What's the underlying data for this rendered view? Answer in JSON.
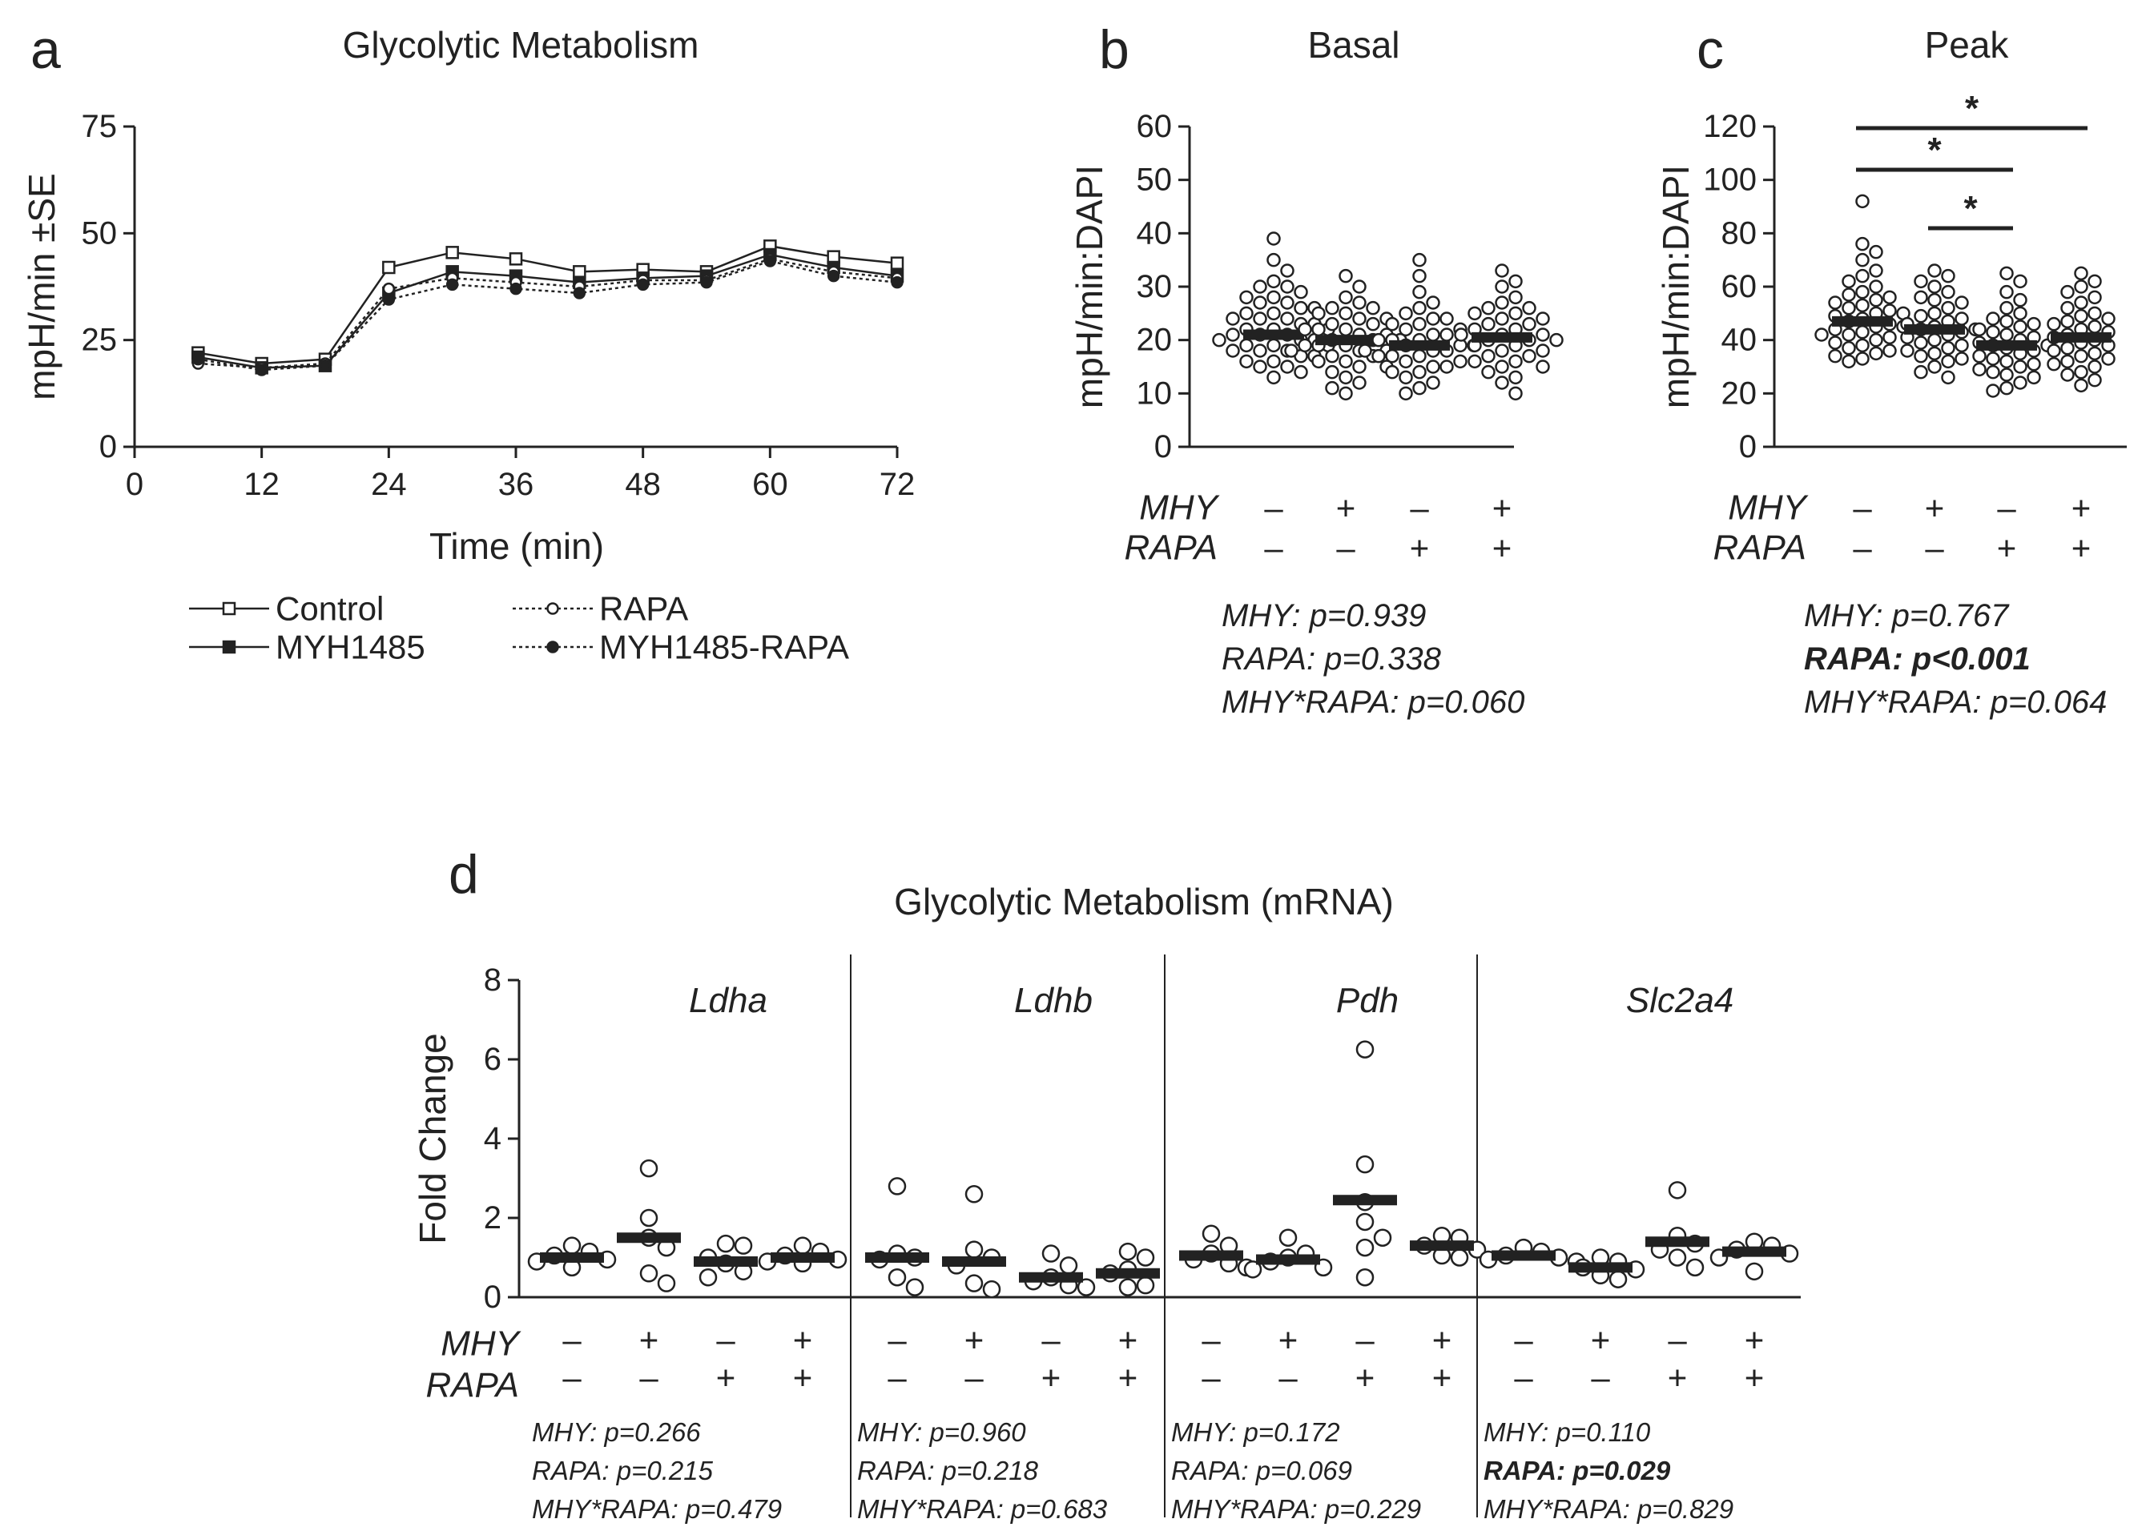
{
  "chart_data": [
    {
      "panel": "a",
      "type": "line",
      "title": "Glycolytic Metabolism",
      "xlabel": "Time (min)",
      "ylabel": "mpH/min ±SE",
      "xlim": [
        0,
        72
      ],
      "ylim": [
        0,
        75
      ],
      "xticks": [
        0,
        12,
        24,
        36,
        48,
        60,
        72
      ],
      "yticks": [
        0,
        25,
        50,
        75
      ],
      "x": [
        6,
        12,
        18,
        24,
        30,
        36,
        42,
        48,
        54,
        60,
        66,
        72
      ],
      "series": [
        {
          "name": "Control",
          "style": "solid",
          "marker": "open-square",
          "values": [
            22,
            19.5,
            20.5,
            42,
            45.5,
            44,
            41,
            41.5,
            41,
            47,
            44.5,
            43
          ]
        },
        {
          "name": "MYH1485",
          "style": "solid",
          "marker": "filled-square",
          "values": [
            21,
            18.5,
            19,
            36,
            41,
            40,
            38.5,
            39.5,
            40,
            45,
            42,
            40
          ]
        },
        {
          "name": "RAPA",
          "style": "dotted",
          "marker": "open-circle",
          "values": [
            19.5,
            18.5,
            19.5,
            37,
            39.5,
            38.5,
            37.5,
            39,
            39,
            44,
            41,
            39.5
          ]
        },
        {
          "name": "MYH1485-RAPA",
          "style": "dotted",
          "marker": "filled-circle",
          "values": [
            20.5,
            18,
            19,
            34.5,
            38,
            37,
            36,
            38,
            38.5,
            43.5,
            40,
            38.5
          ]
        }
      ]
    },
    {
      "panel": "b",
      "type": "scatter",
      "title": "Basal",
      "ylabel": "mpH/min:DAPI",
      "ylim": [
        0,
        60
      ],
      "yticks": [
        0,
        10,
        20,
        30,
        40,
        50,
        60
      ],
      "groups": [
        {
          "MHY": "–",
          "RAPA": "–",
          "mean": 21,
          "values": [
            39,
            35,
            33,
            31,
            30,
            30,
            29,
            28,
            28,
            27,
            27,
            26,
            26,
            25,
            25,
            24,
            24,
            24,
            23,
            23,
            22,
            22,
            22,
            21,
            21,
            21,
            20,
            20,
            20,
            19,
            19,
            19,
            18,
            18,
            18,
            17,
            17,
            16,
            16,
            15,
            15,
            14,
            13
          ]
        },
        {
          "MHY": "+",
          "RAPA": "–",
          "mean": 20,
          "values": [
            32,
            30,
            28,
            27,
            26,
            26,
            25,
            25,
            24,
            24,
            23,
            23,
            22,
            22,
            22,
            21,
            21,
            20,
            20,
            20,
            19,
            19,
            19,
            18,
            18,
            18,
            17,
            17,
            16,
            16,
            15,
            15,
            14,
            13,
            12,
            11,
            10
          ]
        },
        {
          "MHY": "–",
          "RAPA": "+",
          "mean": 19,
          "values": [
            35,
            32,
            29,
            27,
            26,
            25,
            24,
            24,
            23,
            23,
            22,
            22,
            21,
            21,
            20,
            20,
            20,
            19,
            19,
            19,
            18,
            18,
            18,
            17,
            17,
            17,
            16,
            16,
            15,
            15,
            14,
            14,
            13,
            12,
            11,
            10
          ]
        },
        {
          "MHY": "+",
          "RAPA": "+",
          "mean": 20.5,
          "values": [
            33,
            31,
            30,
            28,
            27,
            26,
            26,
            25,
            25,
            24,
            24,
            23,
            23,
            22,
            22,
            21,
            21,
            21,
            20,
            20,
            20,
            19,
            19,
            18,
            18,
            17,
            17,
            16,
            16,
            15,
            15,
            14,
            13,
            12,
            10
          ]
        }
      ],
      "row_labels": [
        "MHY",
        "RAPA"
      ],
      "stats": [
        {
          "text": "MHY: p=0.939",
          "bold": false
        },
        {
          "text": "RAPA: p=0.338",
          "bold": false
        },
        {
          "text": "MHY*RAPA: p=0.060",
          "bold": false
        }
      ]
    },
    {
      "panel": "c",
      "type": "scatter",
      "title": "Peak",
      "ylabel": "mpH/min:DAPI",
      "ylim": [
        0,
        120
      ],
      "yticks": [
        0,
        20,
        40,
        60,
        80,
        100,
        120
      ],
      "groups": [
        {
          "MHY": "–",
          "RAPA": "–",
          "mean": 47,
          "values": [
            92,
            76,
            73,
            70,
            66,
            64,
            62,
            60,
            58,
            57,
            56,
            55,
            54,
            53,
            52,
            51,
            50,
            50,
            49,
            48,
            47,
            46,
            45,
            45,
            44,
            43,
            42,
            42,
            41,
            40,
            39,
            38,
            37,
            36,
            35,
            34,
            33,
            32
          ]
        },
        {
          "MHY": "+",
          "RAPA": "–",
          "mean": 44,
          "values": [
            66,
            64,
            62,
            60,
            58,
            56,
            55,
            54,
            52,
            50,
            49,
            48,
            47,
            46,
            45,
            44,
            44,
            43,
            42,
            41,
            40,
            39,
            38,
            37,
            36,
            35,
            34,
            33,
            32,
            30,
            28,
            26
          ]
        },
        {
          "MHY": "–",
          "RAPA": "+",
          "mean": 38,
          "values": [
            65,
            62,
            58,
            55,
            52,
            50,
            48,
            47,
            46,
            45,
            44,
            43,
            42,
            41,
            40,
            39,
            38,
            38,
            37,
            36,
            35,
            34,
            33,
            32,
            31,
            30,
            29,
            28,
            27,
            26,
            24,
            22,
            21
          ]
        },
        {
          "MHY": "+",
          "RAPA": "+",
          "mean": 41,
          "values": [
            65,
            62,
            60,
            58,
            56,
            54,
            52,
            50,
            49,
            48,
            47,
            46,
            45,
            44,
            43,
            42,
            41,
            40,
            39,
            38,
            37,
            36,
            35,
            34,
            33,
            32,
            31,
            30,
            28,
            27,
            25,
            23
          ]
        }
      ],
      "significance": [
        {
          "from": 0,
          "to": 3,
          "label": "*"
        },
        {
          "from": 0,
          "to": 2,
          "label": "*"
        },
        {
          "from": 1,
          "to": 2,
          "label": "*"
        }
      ],
      "row_labels": [
        "MHY",
        "RAPA"
      ],
      "stats": [
        {
          "text": "MHY: p=0.767",
          "bold": false
        },
        {
          "text": "RAPA: p<0.001",
          "bold": true
        },
        {
          "text": "MHY*RAPA: p=0.064",
          "bold": false
        }
      ]
    },
    {
      "panel": "d",
      "type": "scatter",
      "title": "Glycolytic Metabolism (mRNA)",
      "ylabel": "Fold Change",
      "ylim": [
        0,
        8
      ],
      "yticks": [
        0,
        2,
        4,
        6,
        8
      ],
      "row_labels": [
        "MHY",
        "RAPA"
      ],
      "genes": [
        {
          "name": "Ldha",
          "groups": [
            {
              "MHY": "–",
              "RAPA": "–",
              "mean": 1.0,
              "values": [
                1.3,
                1.15,
                1.05,
                0.95,
                0.9,
                0.75
              ]
            },
            {
              "MHY": "+",
              "RAPA": "–",
              "mean": 1.5,
              "values": [
                3.25,
                2.0,
                1.5,
                1.25,
                0.6,
                0.35
              ]
            },
            {
              "MHY": "–",
              "RAPA": "+",
              "mean": 0.9,
              "values": [
                1.35,
                1.3,
                1.0,
                0.85,
                0.65,
                0.5
              ]
            },
            {
              "MHY": "+",
              "RAPA": "+",
              "mean": 1.0,
              "values": [
                1.3,
                1.15,
                1.05,
                0.95,
                0.9,
                0.85
              ]
            }
          ],
          "stats": [
            {
              "text": "MHY: p=0.266",
              "bold": false
            },
            {
              "text": "RAPA: p=0.215",
              "bold": false
            },
            {
              "text": "MHY*RAPA: p=0.479",
              "bold": false
            }
          ]
        },
        {
          "name": "Ldhb",
          "groups": [
            {
              "MHY": "–",
              "RAPA": "–",
              "mean": 1.0,
              "values": [
                2.8,
                1.1,
                1.0,
                0.95,
                0.5,
                0.25
              ]
            },
            {
              "MHY": "+",
              "RAPA": "–",
              "mean": 0.9,
              "values": [
                2.6,
                1.2,
                1.0,
                0.8,
                0.35,
                0.2
              ]
            },
            {
              "MHY": "–",
              "RAPA": "+",
              "mean": 0.5,
              "values": [
                1.1,
                0.8,
                0.5,
                0.4,
                0.3,
                0.25
              ]
            },
            {
              "MHY": "+",
              "RAPA": "+",
              "mean": 0.6,
              "values": [
                1.15,
                1.0,
                0.7,
                0.6,
                0.3,
                0.25
              ]
            }
          ],
          "stats": [
            {
              "text": "MHY: p=0.960",
              "bold": false
            },
            {
              "text": "RAPA: p=0.218",
              "bold": false
            },
            {
              "text": "MHY*RAPA: p=0.683",
              "bold": false
            }
          ]
        },
        {
          "name": "Pdh",
          "groups": [
            {
              "MHY": "–",
              "RAPA": "–",
              "mean": 1.05,
              "values": [
                1.6,
                1.3,
                1.1,
                0.95,
                0.85,
                0.75
              ]
            },
            {
              "MHY": "+",
              "RAPA": "–",
              "mean": 0.95,
              "values": [
                1.5,
                1.1,
                1.0,
                0.9,
                0.75,
                0.7
              ]
            },
            {
              "MHY": "–",
              "RAPA": "+",
              "mean": 2.45,
              "values": [
                6.25,
                3.35,
                2.4,
                1.9,
                1.5,
                1.25,
                0.5
              ]
            },
            {
              "MHY": "+",
              "RAPA": "+",
              "mean": 1.3,
              "values": [
                1.55,
                1.5,
                1.3,
                1.2,
                1.05,
                1.0
              ]
            }
          ],
          "stats": [
            {
              "text": "MHY: p=0.172",
              "bold": false
            },
            {
              "text": "RAPA: p=0.069",
              "bold": false
            },
            {
              "text": "MHY*RAPA: p=0.229",
              "bold": false
            }
          ]
        },
        {
          "name": "Slc2a4",
          "groups": [
            {
              "MHY": "–",
              "RAPA": "–",
              "mean": 1.05,
              "values": [
                1.25,
                1.15,
                1.05,
                1.0,
                0.95,
                0.9
              ]
            },
            {
              "MHY": "+",
              "RAPA": "–",
              "mean": 0.75,
              "values": [
                1.0,
                0.9,
                0.75,
                0.7,
                0.55,
                0.45
              ]
            },
            {
              "MHY": "–",
              "RAPA": "+",
              "mean": 1.4,
              "values": [
                2.7,
                1.55,
                1.35,
                1.2,
                1.0,
                0.75
              ]
            },
            {
              "MHY": "+",
              "RAPA": "+",
              "mean": 1.15,
              "values": [
                1.4,
                1.3,
                1.2,
                1.1,
                1.0,
                0.65
              ]
            }
          ],
          "stats": [
            {
              "text": "MHY: p=0.110",
              "bold": false
            },
            {
              "text": "RAPA: p=0.029",
              "bold": true
            },
            {
              "text": "MHY*RAPA: p=0.829",
              "bold": false
            }
          ]
        }
      ]
    }
  ],
  "panel_labels": {
    "a": "a",
    "b": "b",
    "c": "c",
    "d": "d"
  }
}
